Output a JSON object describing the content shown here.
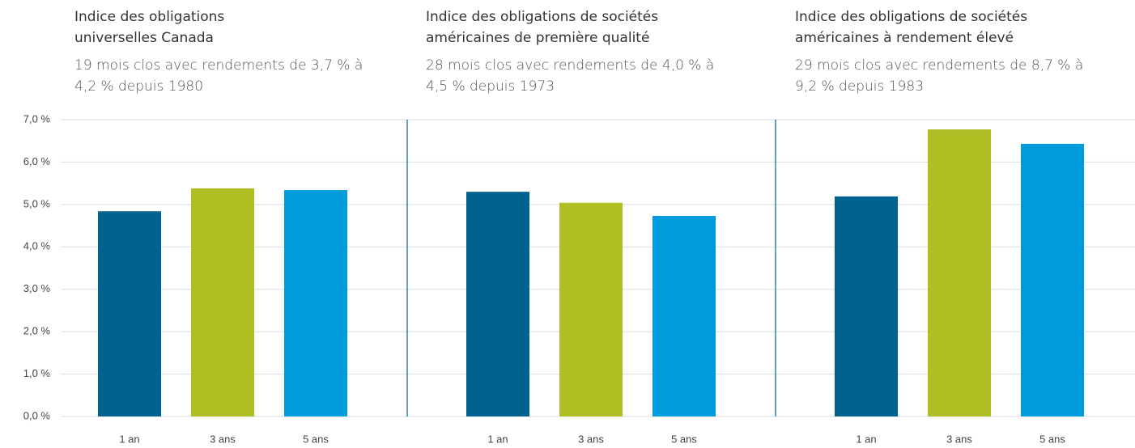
{
  "chart_data": [
    {
      "type": "bar",
      "title": "Indice des obligations universelles Canada",
      "subtitle": " 19 mois clos avec rendements de 3,7 % à 4,2 % depuis 1980",
      "categories": [
        "1 an",
        "3 ans",
        "5 ans"
      ],
      "values": [
        4.84,
        5.38,
        5.34
      ],
      "colors": [
        "#00628f",
        "#afbe23",
        "#009bdc"
      ],
      "ylim": [
        0,
        7
      ],
      "yticks": [
        {
          "value": 0,
          "label": "0,0 %"
        },
        {
          "value": 1,
          "label": "1,0 %"
        },
        {
          "value": 2,
          "label": "2,0 %"
        },
        {
          "value": 3,
          "label": "3,0 %"
        },
        {
          "value": 4,
          "label": "4,0 %"
        },
        {
          "value": 5,
          "label": "5,0 %"
        },
        {
          "value": 6,
          "label": "6,0 %"
        },
        {
          "value": 7,
          "label": "7,0 %"
        }
      ],
      "grid": true
    },
    {
      "type": "bar",
      "title": "Indice des obligations de sociétés américaines de première qualité",
      "subtitle": "28 mois clos avec rendements de 4,0 % à 4,5 % depuis 1973",
      "categories": [
        "1 an",
        "3 ans",
        "5 ans"
      ],
      "values": [
        5.3,
        5.04,
        4.73
      ],
      "colors": [
        "#00628f",
        "#afbe23",
        "#009bdc"
      ],
      "ylim": [
        0,
        7
      ]
    },
    {
      "type": "bar",
      "title": "Indice des obligations de sociétés américaines à rendement élevé",
      "subtitle": "29 mois clos avec rendements de 8,7 % à 9,2 % depuis 1983",
      "categories": [
        "1 an",
        "3 ans",
        "5 ans"
      ],
      "values": [
        5.19,
        6.77,
        6.43
      ],
      "colors": [
        "#00628f",
        "#afbe23",
        "#009bdc"
      ],
      "ylim": [
        0,
        7
      ]
    }
  ]
}
